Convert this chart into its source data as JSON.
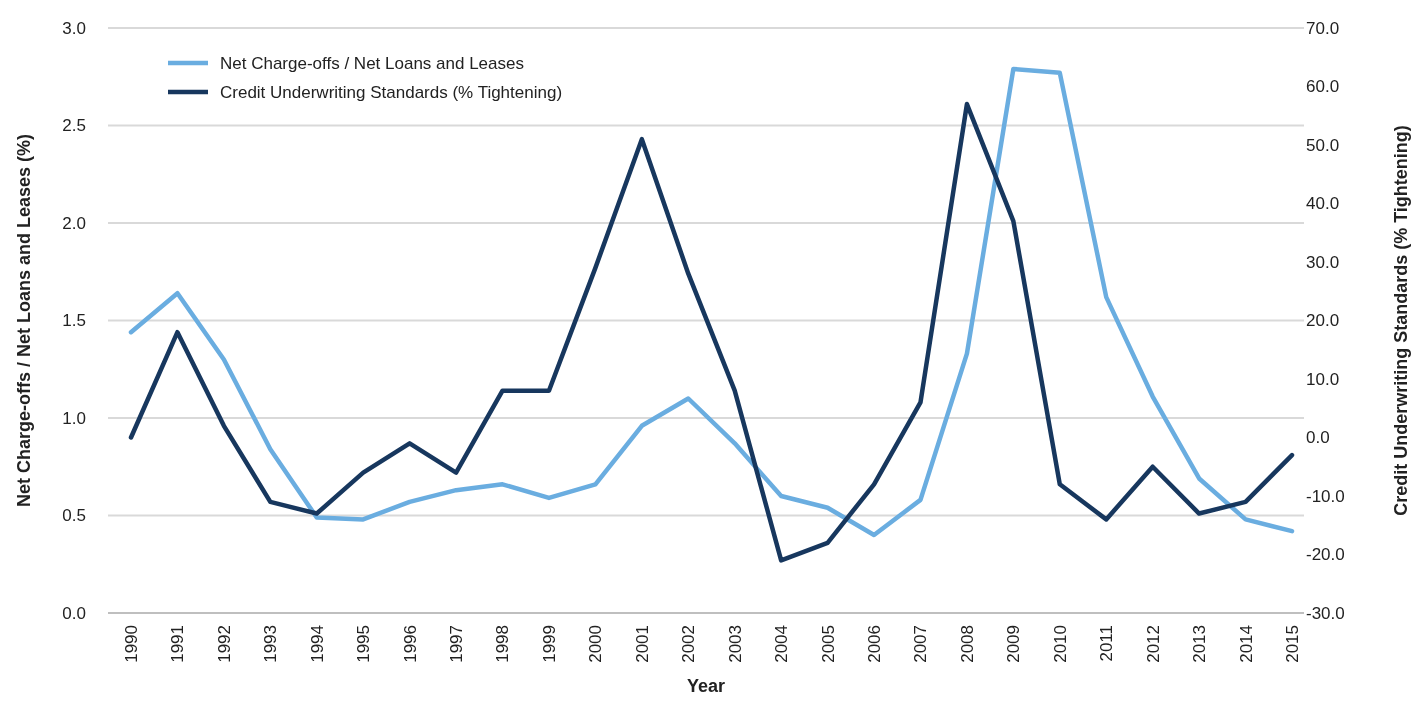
{
  "chart_data": {
    "type": "line",
    "xlabel": "Year",
    "ylabel": "Net Charge-offs / Net Loans and Leases (%)",
    "y2label": "Credit Underwriting Standards (% Tightening)",
    "categories": [
      "1990",
      "1991",
      "1992",
      "1993",
      "1994",
      "1995",
      "1996",
      "1997",
      "1998",
      "1999",
      "2000",
      "2001",
      "2002",
      "2003",
      "2004",
      "2005",
      "2006",
      "2007",
      "2008",
      "2009",
      "2010",
      "2011",
      "2012",
      "2013",
      "2014",
      "2015"
    ],
    "series": [
      {
        "name": "Net Charge-offs / Net Loans and Leases",
        "color": "#6aade0",
        "values": [
          1.44,
          1.64,
          1.3,
          0.84,
          0.49,
          0.48,
          0.57,
          0.63,
          0.66,
          0.59,
          0.66,
          0.96,
          1.1,
          0.87,
          0.6,
          0.54,
          0.4,
          0.58,
          1.33,
          2.79,
          2.77,
          1.62,
          1.11,
          0.69,
          0.48,
          0.42
        ]
      },
      {
        "name": "Credit Underwriting Standards (% Tightening)",
        "color": "#17375e",
        "axis": "y2",
        "values": [
          0,
          18,
          2,
          -11,
          -13,
          -6,
          -1,
          -6,
          8,
          8,
          29,
          51,
          28,
          8,
          -21,
          -18,
          -8,
          6,
          57,
          37,
          -8,
          -14,
          -5,
          -13,
          -11,
          -3
        ]
      }
    ],
    "ylim": [
      0,
      3
    ],
    "yticks": [
      {
        "value": 0,
        "label": "0.0"
      },
      {
        "value": 0.5,
        "label": "0.5"
      },
      {
        "value": 1,
        "label": "1.0"
      },
      {
        "value": 1.5,
        "label": "1.5"
      },
      {
        "value": 2,
        "label": "2.0"
      },
      {
        "value": 2.5,
        "label": "2.5"
      },
      {
        "value": 3,
        "label": "3.0"
      }
    ],
    "y2lim": [
      -30,
      70
    ],
    "y2ticks": [
      {
        "value": -30,
        "label": "-30.0"
      },
      {
        "value": -20,
        "label": "-20.0"
      },
      {
        "value": -10,
        "label": "-10.0"
      },
      {
        "value": 0,
        "label": "0.0"
      },
      {
        "value": 10,
        "label": "10.0"
      },
      {
        "value": 20,
        "label": "20.0"
      },
      {
        "value": 30,
        "label": "30.0"
      },
      {
        "value": 40,
        "label": "40.0"
      },
      {
        "value": 50,
        "label": "50.0"
      },
      {
        "value": 60,
        "label": "60.0"
      },
      {
        "value": 70,
        "label": "70.0"
      }
    ],
    "grid": "y",
    "legend": "top left",
    "marker": "none",
    "line_style": "solid"
  }
}
